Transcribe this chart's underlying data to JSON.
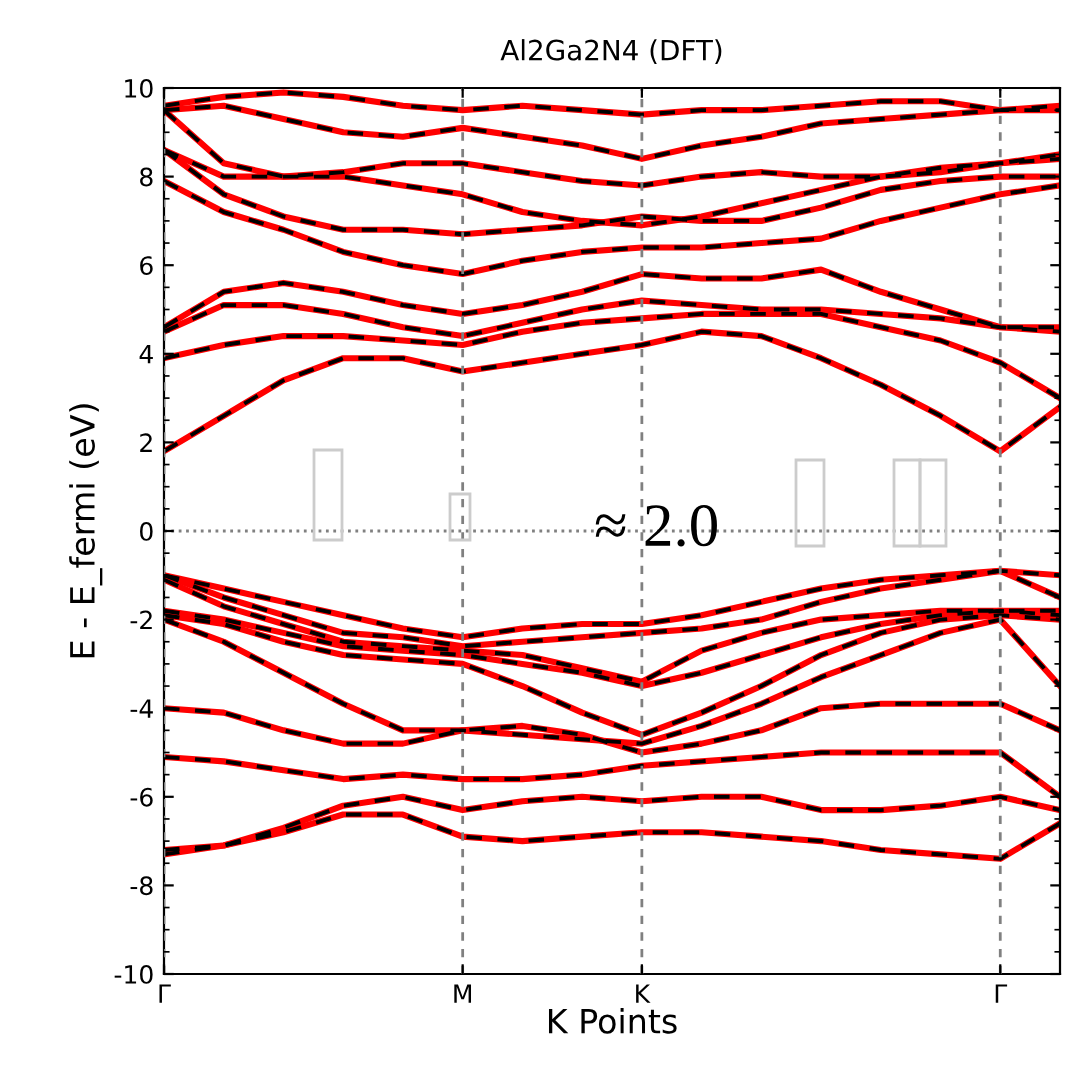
{
  "chart_data": {
    "type": "line",
    "title": "Al2Ga2N4 (DFT)",
    "xlabel": "K Points",
    "ylabel": "E - E_fermi (eV)",
    "annotations": [
      "≈ 2.0"
    ],
    "categories": [
      "Γ",
      null,
      null,
      null,
      null,
      "M",
      null,
      null,
      "K",
      null,
      null,
      null,
      null,
      null,
      "Γ",
      null
    ],
    "ylim": [
      -10,
      10
    ],
    "yticks": [
      -10,
      -8,
      -6,
      -4,
      -2,
      0,
      2,
      4,
      6,
      8,
      10
    ],
    "grid": "x",
    "ref_lines": [
      {
        "axis": "y",
        "value": 0,
        "color": "#808080",
        "line_style": "dotted"
      }
    ],
    "series": [
      {
        "color": "#ff0000",
        "line_style": "solid",
        "values": [
          1.8,
          2.6,
          3.4,
          3.9,
          3.9,
          3.6,
          3.8,
          4.0,
          4.2,
          4.5,
          4.4,
          3.9,
          3.3,
          2.6,
          1.8,
          2.8
        ]
      },
      {
        "color": "#ff0000",
        "line_style": "solid",
        "values": [
          3.9,
          4.2,
          4.4,
          4.4,
          4.3,
          4.2,
          4.5,
          4.7,
          4.8,
          4.9,
          4.9,
          4.9,
          4.6,
          4.3,
          3.8,
          3.0
        ]
      },
      {
        "color": "#ff0000",
        "line_style": "solid",
        "values": [
          4.5,
          5.1,
          5.1,
          4.9,
          4.6,
          4.4,
          4.7,
          5.0,
          5.2,
          5.1,
          5.0,
          5.0,
          4.9,
          4.8,
          4.6,
          4.5
        ]
      },
      {
        "color": "#ff0000",
        "line_style": "solid",
        "values": [
          4.6,
          5.4,
          5.6,
          5.4,
          5.1,
          4.9,
          5.1,
          5.4,
          5.8,
          5.7,
          5.7,
          5.9,
          5.4,
          5.0,
          4.6,
          4.6
        ]
      },
      {
        "color": "#ff0000",
        "line_style": "solid",
        "values": [
          7.9,
          7.2,
          6.8,
          6.3,
          6.0,
          5.8,
          6.1,
          6.3,
          6.4,
          6.4,
          6.5,
          6.6,
          7.0,
          7.3,
          7.6,
          7.8
        ]
      },
      {
        "color": "#ff0000",
        "line_style": "solid",
        "values": [
          8.6,
          7.6,
          7.1,
          6.8,
          6.8,
          6.7,
          6.8,
          6.9,
          7.1,
          7.0,
          7.0,
          7.3,
          7.7,
          7.9,
          8.0,
          8.0
        ]
      },
      {
        "color": "#ff0000",
        "line_style": "solid",
        "values": [
          8.6,
          8.0,
          8.0,
          8.0,
          7.8,
          7.6,
          7.2,
          7.0,
          6.9,
          7.1,
          7.4,
          7.7,
          8.0,
          8.2,
          8.3,
          8.4
        ]
      },
      {
        "color": "#ff0000",
        "line_style": "solid",
        "values": [
          9.5,
          8.3,
          8.0,
          8.1,
          8.3,
          8.3,
          8.1,
          7.9,
          7.8,
          8.0,
          8.1,
          8.0,
          8.0,
          8.1,
          8.3,
          8.5
        ]
      },
      {
        "color": "#ff0000",
        "line_style": "solid",
        "values": [
          9.5,
          9.6,
          9.3,
          9.0,
          8.9,
          9.1,
          8.9,
          8.7,
          8.4,
          8.7,
          8.9,
          9.2,
          9.3,
          9.4,
          9.5,
          9.5
        ]
      },
      {
        "color": "#ff0000",
        "line_style": "solid",
        "values": [
          9.6,
          9.8,
          9.9,
          9.8,
          9.6,
          9.5,
          9.6,
          9.5,
          9.4,
          9.5,
          9.5,
          9.6,
          9.7,
          9.7,
          9.5,
          9.6
        ]
      },
      {
        "color": "#ff0000",
        "line_style": "solid",
        "values": [
          -1.0,
          -1.3,
          -1.6,
          -1.9,
          -2.2,
          -2.4,
          -2.2,
          -2.1,
          -2.1,
          -1.9,
          -1.6,
          -1.3,
          -1.1,
          -1.0,
          -0.9,
          -1.0
        ]
      },
      {
        "color": "#ff0000",
        "line_style": "solid",
        "values": [
          -1.0,
          -1.5,
          -1.9,
          -2.3,
          -2.4,
          -2.6,
          -2.5,
          -2.4,
          -2.3,
          -2.2,
          -2.0,
          -1.6,
          -1.3,
          -1.1,
          -0.9,
          -1.5
        ]
      },
      {
        "color": "#ff0000",
        "line_style": "solid",
        "values": [
          -1.1,
          -1.7,
          -2.1,
          -2.5,
          -2.6,
          -2.7,
          -2.8,
          -3.1,
          -3.4,
          -2.7,
          -2.3,
          -2.0,
          -1.9,
          -1.8,
          -1.8,
          -1.8
        ]
      },
      {
        "color": "#ff0000",
        "line_style": "solid",
        "values": [
          -1.8,
          -2.0,
          -2.3,
          -2.6,
          -2.7,
          -2.8,
          -3.0,
          -3.2,
          -3.5,
          -3.2,
          -2.8,
          -2.4,
          -2.1,
          -1.9,
          -1.8,
          -1.9
        ]
      },
      {
        "color": "#ff0000",
        "line_style": "solid",
        "values": [
          -1.9,
          -2.1,
          -2.5,
          -2.8,
          -2.9,
          -3.0,
          -3.5,
          -4.1,
          -4.6,
          -4.1,
          -3.5,
          -2.8,
          -2.3,
          -2.0,
          -1.9,
          -2.0
        ]
      },
      {
        "color": "#ff0000",
        "line_style": "solid",
        "values": [
          -2.0,
          -2.5,
          -3.2,
          -3.9,
          -4.5,
          -4.5,
          -4.6,
          -4.7,
          -4.8,
          -4.4,
          -3.9,
          -3.3,
          -2.8,
          -2.3,
          -2.0,
          -3.5
        ]
      },
      {
        "color": "#ff0000",
        "line_style": "solid",
        "values": [
          -4.0,
          -4.1,
          -4.5,
          -4.8,
          -4.8,
          -4.5,
          -4.4,
          -4.6,
          -5.0,
          -4.8,
          -4.5,
          -4.0,
          -3.9,
          -3.9,
          -3.9,
          -4.5
        ]
      },
      {
        "color": "#ff0000",
        "line_style": "solid",
        "values": [
          -5.1,
          -5.2,
          -5.4,
          -5.6,
          -5.5,
          -5.6,
          -5.6,
          -5.5,
          -5.3,
          -5.2,
          -5.1,
          -5.0,
          -5.0,
          -5.0,
          -5.0,
          -6.0
        ]
      },
      {
        "color": "#ff0000",
        "line_style": "solid",
        "values": [
          -7.2,
          -7.1,
          -6.7,
          -6.2,
          -6.0,
          -6.3,
          -6.1,
          -6.0,
          -6.1,
          -6.0,
          -6.0,
          -6.3,
          -6.3,
          -6.2,
          -6.0,
          -6.3
        ]
      },
      {
        "color": "#ff0000",
        "line_style": "solid",
        "values": [
          -7.3,
          -7.1,
          -6.8,
          -6.4,
          -6.4,
          -6.9,
          -7.0,
          -6.9,
          -6.8,
          -6.8,
          -6.9,
          -7.0,
          -7.2,
          -7.3,
          -7.4,
          -6.6
        ]
      },
      {
        "color": "#000000",
        "line_style": "dashed",
        "values": [
          1.8,
          2.6,
          3.4,
          3.9,
          3.9,
          3.6,
          3.8,
          4.0,
          4.2,
          4.5,
          4.4,
          3.9,
          3.3,
          2.6,
          1.8,
          2.8
        ]
      },
      {
        "color": "#000000",
        "line_style": "dashed",
        "values": [
          3.9,
          4.2,
          4.4,
          4.4,
          4.3,
          4.2,
          4.5,
          4.7,
          4.8,
          4.9,
          4.9,
          4.9,
          4.6,
          4.3,
          3.8,
          3.0
        ]
      },
      {
        "color": "#000000",
        "line_style": "dashed",
        "values": [
          4.5,
          5.1,
          5.1,
          4.9,
          4.6,
          4.4,
          4.7,
          5.0,
          5.2,
          5.1,
          5.0,
          5.0,
          4.9,
          4.8,
          4.6,
          4.5
        ]
      },
      {
        "color": "#000000",
        "line_style": "dashed",
        "values": [
          4.6,
          5.4,
          5.6,
          5.4,
          5.1,
          4.9,
          5.1,
          5.4,
          5.8,
          5.7,
          5.7,
          5.9,
          5.4,
          5.0,
          4.6,
          4.6
        ]
      },
      {
        "color": "#000000",
        "line_style": "dashed",
        "values": [
          7.9,
          7.2,
          6.8,
          6.3,
          6.0,
          5.8,
          6.1,
          6.3,
          6.4,
          6.4,
          6.5,
          6.6,
          7.0,
          7.3,
          7.6,
          7.8
        ]
      },
      {
        "color": "#000000",
        "line_style": "dashed",
        "values": [
          8.6,
          7.6,
          7.1,
          6.8,
          6.8,
          6.7,
          6.8,
          6.9,
          7.1,
          7.0,
          7.0,
          7.3,
          7.7,
          7.9,
          8.0,
          8.0
        ]
      },
      {
        "color": "#000000",
        "line_style": "dashed",
        "values": [
          8.6,
          8.0,
          8.0,
          8.0,
          7.8,
          7.6,
          7.2,
          7.0,
          6.9,
          7.1,
          7.4,
          7.7,
          8.0,
          8.2,
          8.3,
          8.4
        ]
      },
      {
        "color": "#000000",
        "line_style": "dashed",
        "values": [
          9.5,
          8.3,
          8.0,
          8.1,
          8.3,
          8.3,
          8.1,
          7.9,
          7.8,
          8.0,
          8.1,
          8.0,
          8.0,
          8.1,
          8.3,
          8.5
        ]
      },
      {
        "color": "#000000",
        "line_style": "dashed",
        "values": [
          9.5,
          9.6,
          9.3,
          9.0,
          8.9,
          9.1,
          8.9,
          8.7,
          8.4,
          8.7,
          8.9,
          9.2,
          9.3,
          9.4,
          9.5,
          9.5
        ]
      },
      {
        "color": "#000000",
        "line_style": "dashed",
        "values": [
          9.6,
          9.8,
          9.9,
          9.8,
          9.6,
          9.5,
          9.6,
          9.5,
          9.4,
          9.5,
          9.5,
          9.6,
          9.7,
          9.7,
          9.5,
          9.6
        ]
      },
      {
        "color": "#000000",
        "line_style": "dashed",
        "values": [
          -1.0,
          -1.3,
          -1.6,
          -1.9,
          -2.2,
          -2.4,
          -2.2,
          -2.1,
          -2.1,
          -1.9,
          -1.6,
          -1.3,
          -1.1,
          -1.0,
          -0.9,
          -1.0
        ]
      },
      {
        "color": "#000000",
        "line_style": "dashed",
        "values": [
          -1.0,
          -1.5,
          -1.9,
          -2.3,
          -2.4,
          -2.6,
          -2.5,
          -2.4,
          -2.3,
          -2.2,
          -2.0,
          -1.6,
          -1.3,
          -1.1,
          -0.9,
          -1.5
        ]
      },
      {
        "color": "#000000",
        "line_style": "dashed",
        "values": [
          -1.1,
          -1.7,
          -2.1,
          -2.5,
          -2.6,
          -2.7,
          -2.8,
          -3.1,
          -3.4,
          -2.7,
          -2.3,
          -2.0,
          -1.9,
          -1.8,
          -1.8,
          -1.8
        ]
      },
      {
        "color": "#000000",
        "line_style": "dashed",
        "values": [
          -1.8,
          -2.0,
          -2.3,
          -2.6,
          -2.7,
          -2.8,
          -3.0,
          -3.2,
          -3.5,
          -3.2,
          -2.8,
          -2.4,
          -2.1,
          -1.9,
          -1.8,
          -1.9
        ]
      },
      {
        "color": "#000000",
        "line_style": "dashed",
        "values": [
          -1.9,
          -2.1,
          -2.5,
          -2.8,
          -2.9,
          -3.0,
          -3.5,
          -4.1,
          -4.6,
          -4.1,
          -3.5,
          -2.8,
          -2.3,
          -2.0,
          -1.9,
          -2.0
        ]
      },
      {
        "color": "#000000",
        "line_style": "dashed",
        "values": [
          -2.0,
          -2.5,
          -3.2,
          -3.9,
          -4.5,
          -4.5,
          -4.6,
          -4.7,
          -4.8,
          -4.4,
          -3.9,
          -3.3,
          -2.8,
          -2.3,
          -2.0,
          -3.5
        ]
      },
      {
        "color": "#000000",
        "line_style": "dashed",
        "values": [
          -4.0,
          -4.1,
          -4.5,
          -4.8,
          -4.8,
          -4.5,
          -4.4,
          -4.6,
          -5.0,
          -4.8,
          -4.5,
          -4.0,
          -3.9,
          -3.9,
          -3.9,
          -4.5
        ]
      },
      {
        "color": "#000000",
        "line_style": "dashed",
        "values": [
          -5.1,
          -5.2,
          -5.4,
          -5.6,
          -5.5,
          -5.6,
          -5.6,
          -5.5,
          -5.3,
          -5.2,
          -5.1,
          -5.0,
          -5.0,
          -5.0,
          -5.0,
          -6.0
        ]
      },
      {
        "color": "#000000",
        "line_style": "dashed",
        "values": [
          -7.2,
          -7.1,
          -6.7,
          -6.2,
          -6.0,
          -6.3,
          -6.1,
          -6.0,
          -6.1,
          -6.0,
          -6.0,
          -6.3,
          -6.3,
          -6.2,
          -6.0,
          -6.3
        ]
      },
      {
        "color": "#000000",
        "line_style": "dashed",
        "values": [
          -7.3,
          -7.1,
          -6.8,
          -6.4,
          -6.4,
          -6.9,
          -7.0,
          -6.9,
          -6.8,
          -6.8,
          -6.9,
          -7.0,
          -7.2,
          -7.3,
          -7.4,
          -6.6
        ]
      }
    ]
  }
}
